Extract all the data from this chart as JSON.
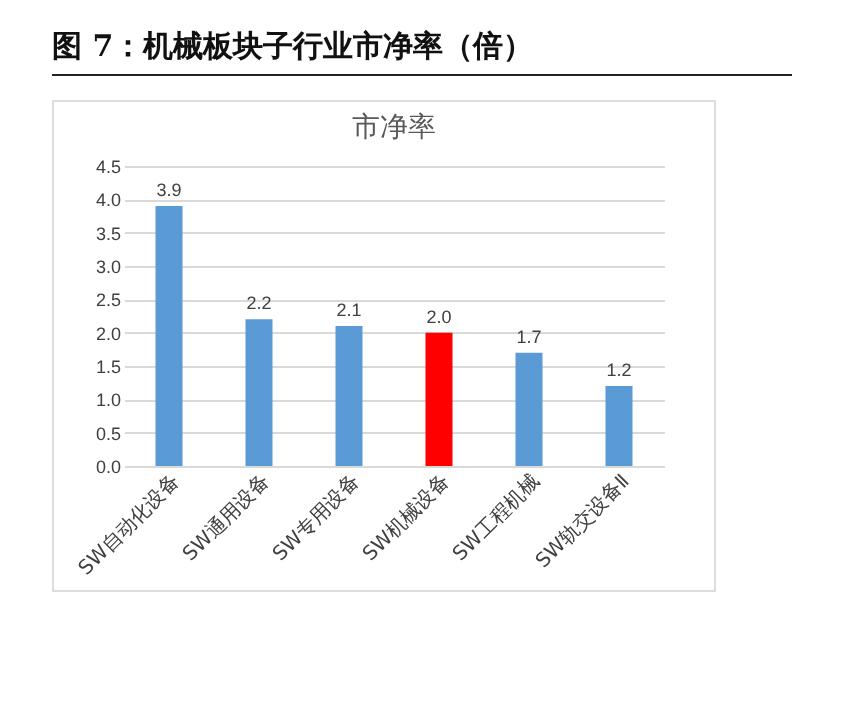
{
  "chart_data": {
    "type": "bar",
    "title": "图 7：机械板块子行业市净率（倍）",
    "subtitle": "市净率",
    "categories": [
      "SW自动化设备",
      "SW通用设备",
      "SW专用设备",
      "SW机械设备",
      "SW工程机械",
      "SW轨交设备Ⅱ"
    ],
    "values": [
      3.9,
      2.2,
      2.1,
      2.0,
      1.7,
      1.2
    ],
    "colors": [
      "#5b9bd5",
      "#5b9bd5",
      "#5b9bd5",
      "#ff0000",
      "#5b9bd5",
      "#5b9bd5"
    ],
    "value_labels": [
      "3.9",
      "2.2",
      "2.1",
      "2.0",
      "1.7",
      "1.2"
    ],
    "ylim": [
      0,
      4.5
    ],
    "yticks": [
      {
        "value": 0,
        "label": "0.0"
      },
      0.5,
      {
        "value": 1,
        "label": "1.0"
      },
      1.5,
      {
        "value": 2,
        "label": "2.0"
      },
      2.5,
      {
        "value": 3,
        "label": "3.0"
      },
      3.5,
      {
        "value": 4,
        "label": "4.0"
      },
      4.5
    ],
    "grid": "y"
  }
}
